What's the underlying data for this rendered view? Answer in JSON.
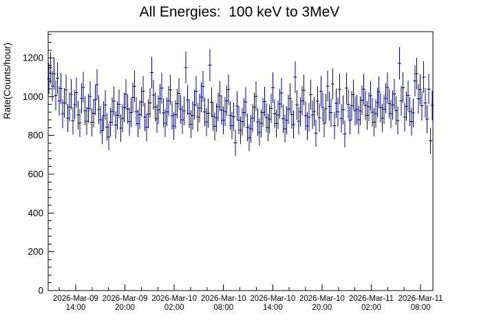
{
  "chart_data": {
    "type": "scatter-errorbar",
    "title": "All Energies:  100 keV to 3MeV",
    "ylabel": "Rate(Counts/hour)",
    "xlabel": "",
    "ylim": [
      0,
      1335
    ],
    "y_major_ticks": [
      0,
      200,
      400,
      600,
      800,
      1000,
      1200
    ],
    "y_tick_labels": [
      "0",
      "200",
      "400",
      "600",
      "800",
      "1000",
      "1200"
    ],
    "y_minor_step": 40,
    "x_axis": {
      "span_hours": 46.85,
      "first_major_offset_hours": 3.35,
      "major_step_hours": 6,
      "minor_step_hours": 2,
      "first_minor_offset_hours": 1.35,
      "major_tick_labels": [
        {
          "date": "2026-Mar-09",
          "time": "14:00"
        },
        {
          "date": "2026-Mar-09",
          "time": "20:00"
        },
        {
          "date": "2026-Mar-10",
          "time": "02:00"
        },
        {
          "date": "2026-Mar-10",
          "time": "08:00"
        },
        {
          "date": "2026-Mar-10",
          "time": "14:00"
        },
        {
          "date": "2026-Mar-10",
          "time": "20:00"
        },
        {
          "date": "2026-Mar-11",
          "time": "02:00"
        },
        {
          "date": "2026-Mar-11",
          "time": "08:00"
        }
      ]
    },
    "yerr_model": "sqrt(6*y)",
    "yerr_typical": 76,
    "y": [
      1092,
      1148,
      1055,
      1118,
      1006,
      1095,
      978,
      1042,
      912,
      968,
      1035,
      889,
      947,
      1012,
      876,
      958,
      1021,
      905,
      863,
      991,
      1048,
      927,
      874,
      939,
      1002,
      868,
      915,
      983,
      1061,
      934,
      881,
      826,
      902,
      957,
      843,
      792,
      868,
      924,
      977,
      854,
      903,
      961,
      838,
      887,
      945,
      1012,
      936,
      872,
      918,
      996,
      1053,
      924,
      861,
      907,
      973,
      1028,
      895,
      842,
      911,
      968,
      1124,
      1009,
      947,
      886,
      932,
      989,
      1044,
      916,
      863,
      921,
      978,
      1035,
      902,
      849,
      908,
      964,
      1018,
      935,
      881,
      926,
      1151,
      983,
      912,
      858,
      903,
      959,
      1027,
      894,
      941,
      997,
      1053,
      922,
      869,
      914,
      1162,
      971,
      898,
      846,
      892,
      948,
      1004,
      931,
      878,
      923,
      979,
      1036,
      903,
      851,
      896,
      762,
      952,
      879,
      827,
      871,
      917,
      973,
      841,
      788,
      834,
      889,
      946,
      1002,
      869,
      817,
      862,
      918,
      974,
      892,
      839,
      884,
      940,
      1046,
      913,
      861,
      906,
      962,
      1019,
      886,
      834,
      879,
      935,
      991,
      908,
      856,
      1101,
      957,
      874,
      922,
      978,
      1034,
      901,
      848,
      894,
      1010,
      906,
      923,
      811,
      976,
      892,
      1028,
      945,
      863,
      938,
      1054,
      950,
      917,
      1065,
      850,
      966,
      922,
      1039,
      887,
      932,
      808,
      1044,
      961,
      878,
      954,
      1010,
      926,
      933,
      881,
      926,
      982,
      1038,
      955,
      903,
      948,
      1004,
      920,
      868,
      913,
      969,
      1025,
      942,
      890,
      935,
      991,
      1047,
      964,
      912,
      957,
      1013,
      929,
      877,
      1172,
      978,
      1046,
      894,
      950,
      1006,
      923,
      871,
      916,
      1082,
      1118,
      989,
      1037,
      953,
      1101,
      968,
      884,
      1039,
      772,
      955
    ],
    "colors": {
      "marker": "#00008b",
      "axis": "#000000",
      "text": "#000000",
      "background": "#ffffff"
    },
    "legend": "none",
    "grid": "off"
  }
}
